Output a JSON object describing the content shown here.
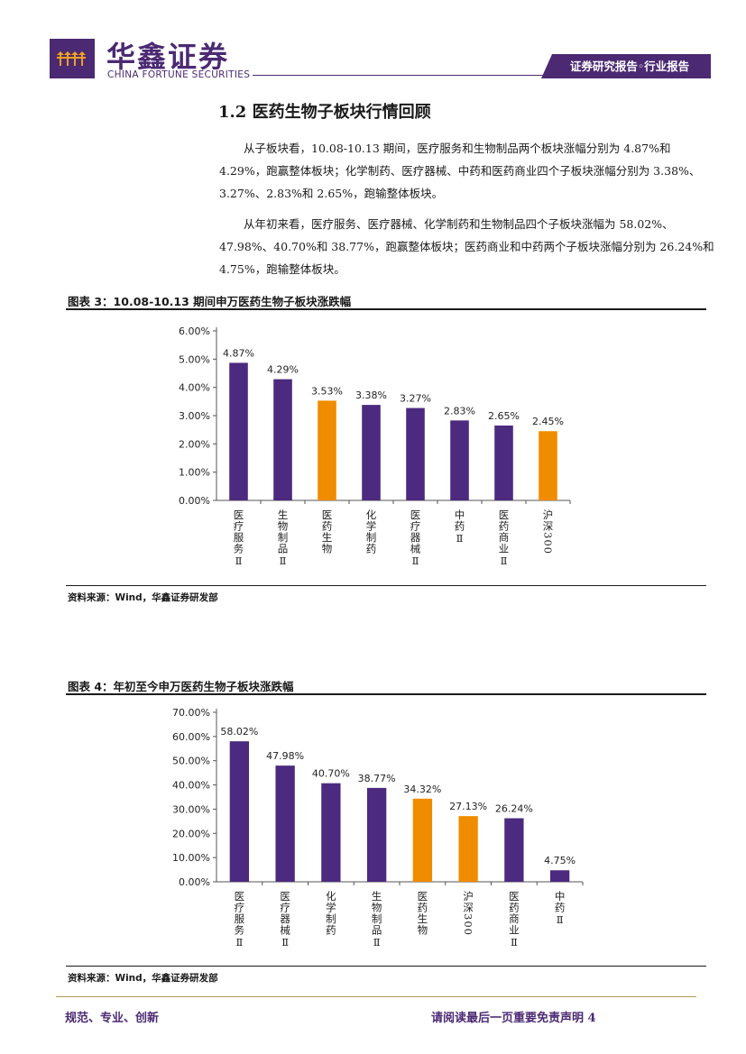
{
  "header": {
    "brand_cn": "华鑫证券",
    "brand_en": "CHINA FORTUNE SECURITIES",
    "report_tag": "证券研究报告◦行业报告",
    "accent": "#4b2a73"
  },
  "section": {
    "title": "1.2 医药生物子板块行情回顾",
    "paragraphs": [
      "从子板块看，10.08-10.13 期间，医疗服务和生物制品两个板块涨幅分别为 4.87%和 4.29%，跑赢整体板块；化学制药、医疗器械、中药和医药商业四个子板块涨幅分别为 3.38%、3.27%、2.83%和 2.65%，跑输整体板块。",
      "从年初来看，医疗服务、医疗器械、化学制药和生物制品四个子板块涨幅为 58.02%、47.98%、40.70%和 38.77%，跑赢整体板块；医药商业和中药两个子板块涨幅分别为 26.24%和 4.75%，跑输整体板块。"
    ]
  },
  "figures": [
    {
      "title": "图表 3：10.08-10.13 期间申万医药生物子板块涨跌幅",
      "source": "资料来源：Wind，华鑫证券研发部"
    },
    {
      "title": "图表 4：年初至今申万医药生物子板块涨跌幅",
      "source": "资料来源：Wind，华鑫证券研发部"
    }
  ],
  "chart_data": [
    {
      "type": "bar",
      "categories": [
        "医疗服务Ⅱ",
        "生物制品Ⅱ",
        "医药生物",
        "化学制药",
        "医疗器械Ⅱ",
        "中药Ⅱ",
        "医药商业Ⅱ",
        "沪深300"
      ],
      "values": [
        4.87,
        4.29,
        3.53,
        3.38,
        3.27,
        2.83,
        2.65,
        2.45
      ],
      "data_labels": [
        "4.87%",
        "4.29%",
        "3.53%",
        "3.38%",
        "3.27%",
        "2.83%",
        "2.65%",
        "2.45%"
      ],
      "highlight": [
        false,
        false,
        true,
        false,
        false,
        false,
        false,
        true
      ],
      "yticks": [
        "0.00%",
        "1.00%",
        "2.00%",
        "3.00%",
        "4.00%",
        "5.00%",
        "6.00%"
      ],
      "ylim": [
        0,
        6
      ],
      "colors": {
        "main": "#4b2a7f",
        "highlight": "#f08c00"
      },
      "grid": false
    },
    {
      "type": "bar",
      "categories": [
        "医疗服务Ⅱ",
        "医疗器械Ⅱ",
        "化学制药",
        "生物制品Ⅱ",
        "医药生物",
        "沪深300",
        "医药商业Ⅱ",
        "中药Ⅱ"
      ],
      "values": [
        58.02,
        47.98,
        40.7,
        38.77,
        34.32,
        27.13,
        26.24,
        4.75
      ],
      "data_labels": [
        "58.02%",
        "47.98%",
        "40.70%",
        "38.77%",
        "34.32%",
        "27.13%",
        "26.24%",
        "4.75%"
      ],
      "highlight": [
        false,
        false,
        false,
        false,
        true,
        true,
        false,
        false
      ],
      "yticks": [
        "0.00%",
        "10.00%",
        "20.00%",
        "30.00%",
        "40.00%",
        "50.00%",
        "60.00%",
        "70.00%"
      ],
      "ylim": [
        0,
        70
      ],
      "colors": {
        "main": "#4b2a7f",
        "highlight": "#f08c00"
      },
      "grid": false
    }
  ],
  "footer": {
    "left": "规范、专业、创新",
    "right": "请阅读最后一页重要免责声明 4"
  }
}
